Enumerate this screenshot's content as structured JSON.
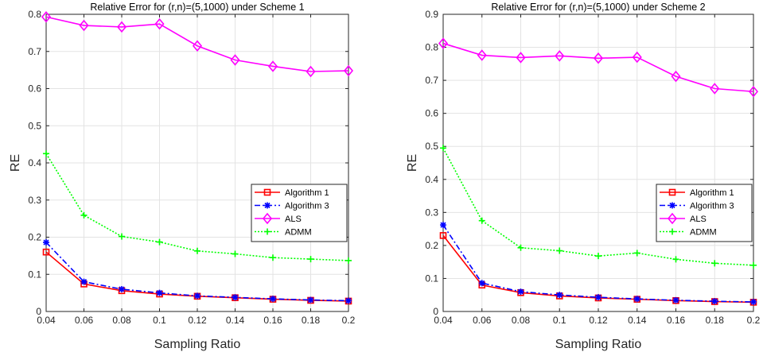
{
  "chart_data": [
    {
      "type": "line",
      "title": "Relative Error for (r,n)=(5,1000) under Scheme 1",
      "xlabel": "Sampling Ratio",
      "ylabel": "RE",
      "x": [
        0.04,
        0.06,
        0.08,
        0.1,
        0.12,
        0.14,
        0.16,
        0.18,
        0.2
      ],
      "x_tick_labels": [
        "0.04",
        "0.06",
        "0.08",
        "0.1",
        "0.12",
        "0.14",
        "0.16",
        "0.18",
        "0.2"
      ],
      "xlim": [
        0.04,
        0.2
      ],
      "ylim": [
        0,
        0.8
      ],
      "y_ticks": [
        0,
        0.1,
        0.2,
        0.3,
        0.4,
        0.5,
        0.6,
        0.7,
        0.8
      ],
      "y_tick_labels": [
        "0",
        "0.1",
        "0.2",
        "0.3",
        "0.4",
        "0.5",
        "0.6",
        "0.7",
        "0.8"
      ],
      "grid": true,
      "legend_position": "lower-right",
      "series": [
        {
          "name": "Algorithm 1",
          "color": "#ff0000",
          "dash": "solid",
          "marker": "square",
          "values": [
            0.16,
            0.074,
            0.056,
            0.047,
            0.041,
            0.037,
            0.033,
            0.03,
            0.028
          ]
        },
        {
          "name": "Algorithm 3",
          "color": "#0000ff",
          "dash": "dashdot",
          "marker": "asterisk",
          "values": [
            0.186,
            0.08,
            0.06,
            0.05,
            0.042,
            0.038,
            0.034,
            0.031,
            0.029
          ]
        },
        {
          "name": "ALS",
          "color": "#ff00ff",
          "dash": "solid",
          "marker": "diamond",
          "values": [
            0.793,
            0.77,
            0.766,
            0.774,
            0.715,
            0.677,
            0.66,
            0.646,
            0.648
          ]
        },
        {
          "name": "ADMM",
          "color": "#00ff00",
          "dash": "dotted",
          "marker": "plus",
          "values": [
            0.425,
            0.259,
            0.202,
            0.187,
            0.163,
            0.155,
            0.145,
            0.141,
            0.137
          ]
        }
      ]
    },
    {
      "type": "line",
      "title": "Relative Error for (r,n)=(5,1000) under Scheme 2",
      "xlabel": "Sampling Ratio",
      "ylabel": "RE",
      "x": [
        0.04,
        0.06,
        0.08,
        0.1,
        0.12,
        0.14,
        0.16,
        0.18,
        0.2
      ],
      "x_tick_labels": [
        "0.04",
        "0.06",
        "0.08",
        "0.1",
        "0.12",
        "0.14",
        "0.16",
        "0.18",
        "0.2"
      ],
      "xlim": [
        0.04,
        0.2
      ],
      "ylim": [
        0,
        0.9
      ],
      "y_ticks": [
        0,
        0.1,
        0.2,
        0.3,
        0.4,
        0.5,
        0.6,
        0.7,
        0.8,
        0.9
      ],
      "y_tick_labels": [
        "0",
        "0.1",
        "0.2",
        "0.3",
        "0.4",
        "0.5",
        "0.6",
        "0.7",
        "0.8",
        "0.9"
      ],
      "grid": true,
      "legend_position": "lower-right",
      "series": [
        {
          "name": "Algorithm 1",
          "color": "#ff0000",
          "dash": "solid",
          "marker": "square",
          "values": [
            0.23,
            0.08,
            0.057,
            0.047,
            0.041,
            0.037,
            0.033,
            0.03,
            0.028
          ]
        },
        {
          "name": "Algorithm 3",
          "color": "#0000ff",
          "dash": "dashdot",
          "marker": "asterisk",
          "values": [
            0.262,
            0.086,
            0.06,
            0.05,
            0.043,
            0.038,
            0.034,
            0.031,
            0.029
          ]
        },
        {
          "name": "ALS",
          "color": "#ff00ff",
          "dash": "solid",
          "marker": "diamond",
          "values": [
            0.812,
            0.776,
            0.769,
            0.774,
            0.767,
            0.77,
            0.712,
            0.675,
            0.666
          ]
        },
        {
          "name": "ADMM",
          "color": "#00ff00",
          "dash": "dotted",
          "marker": "plus",
          "values": [
            0.495,
            0.275,
            0.193,
            0.184,
            0.168,
            0.177,
            0.158,
            0.146,
            0.14
          ]
        }
      ]
    }
  ]
}
